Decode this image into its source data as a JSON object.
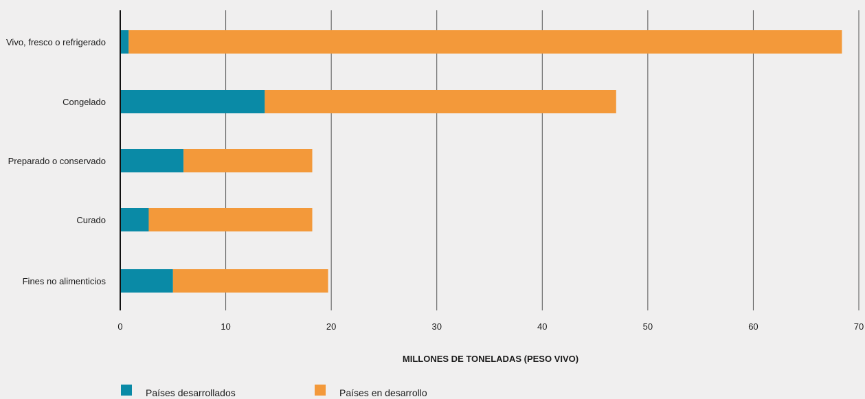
{
  "chart_data": {
    "type": "bar",
    "orientation": "horizontal",
    "stacked": true,
    "categories": [
      "Vivo, fresco o refrigerado",
      "Congelado",
      "Preparado o conservado",
      "Curado",
      "Fines no alimenticios"
    ],
    "series": [
      {
        "name": "Países desarrollados",
        "color": "#0a8aa6",
        "values": [
          0.8,
          13.7,
          6.0,
          2.7,
          5.0
        ]
      },
      {
        "name": "Países en desarrollo",
        "color": "#f3993a",
        "values": [
          67.6,
          33.3,
          12.2,
          15.5,
          14.7
        ]
      }
    ],
    "xlabel": "MILLONES DE TONELADAS (PESO VIVO)",
    "xlim": [
      0,
      70
    ],
    "xticks": [
      "0",
      "10",
      "20",
      "30",
      "40",
      "50",
      "60",
      "70"
    ],
    "grid": "vertical",
    "legend_position": "bottom-left"
  }
}
